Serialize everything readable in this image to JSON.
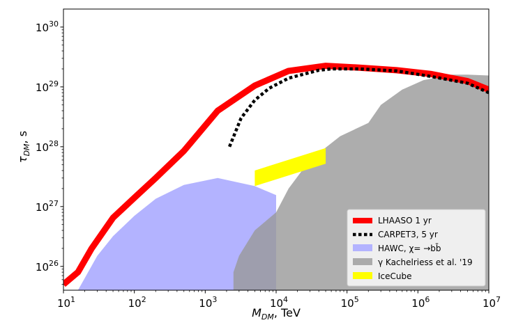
{
  "chart_data": {
    "type": "line",
    "xlabel": "M_DM, TeV",
    "xlabel_main": "M",
    "xlabel_sub": "DM",
    "xlabel_unit": ", TeV",
    "ylabel": "τ_DM, s",
    "ylabel_main": "τ",
    "ylabel_sub": "DM",
    "ylabel_unit": ", s",
    "xscale": "log",
    "yscale": "log",
    "xlim": [
      10,
      10000000
    ],
    "ylim": [
      4e+25,
      2e+30
    ],
    "grid": false,
    "legend_position": "lower-right",
    "x_ticks": [
      {
        "base": "10",
        "exp": "1",
        "value": 10
      },
      {
        "base": "10",
        "exp": "2",
        "value": 100
      },
      {
        "base": "10",
        "exp": "3",
        "value": 1000
      },
      {
        "base": "10",
        "exp": "4",
        "value": 10000
      },
      {
        "base": "10",
        "exp": "5",
        "value": 100000
      },
      {
        "base": "10",
        "exp": "6",
        "value": 1000000
      },
      {
        "base": "10",
        "exp": "7",
        "value": 10000000
      }
    ],
    "y_ticks": [
      {
        "base": "10",
        "exp": "26",
        "value": 1e+26
      },
      {
        "base": "10",
        "exp": "27",
        "value": 1e+27
      },
      {
        "base": "10",
        "exp": "28",
        "value": 1e+28
      },
      {
        "base": "10",
        "exp": "29",
        "value": 1e+29
      },
      {
        "base": "10",
        "exp": "30",
        "value": 1e+30
      }
    ],
    "series": [
      {
        "name": "LHAASO 1 yr",
        "kind": "line",
        "color": "#ff0000",
        "style": "solid",
        "points": [
          [
            10,
            5e+25
          ],
          [
            16,
            8e+25
          ],
          [
            25,
            2e+26
          ],
          [
            50,
            6.5e+26
          ],
          [
            100,
            1.4e+27
          ],
          [
            200,
            3e+27
          ],
          [
            500,
            8.5e+27
          ],
          [
            1500,
            4e+28
          ],
          [
            5000,
            1.05e+29
          ],
          [
            15000,
            1.85e+29
          ],
          [
            50000,
            2.25e+29
          ],
          [
            150000,
            2.1e+29
          ],
          [
            500000,
            1.9e+29
          ],
          [
            1500000,
            1.65e+29
          ],
          [
            5000000,
            1.25e+29
          ],
          [
            10000000,
            9e+28
          ]
        ]
      },
      {
        "name": "CARPET3, 5 yr",
        "kind": "line",
        "color": "#000000",
        "style": "dotted",
        "points": [
          [
            2200,
            1e+28
          ],
          [
            3200,
            3e+28
          ],
          [
            5000,
            6e+28
          ],
          [
            8000,
            9.5e+28
          ],
          [
            15000,
            1.4e+29
          ],
          [
            40000,
            1.9e+29
          ],
          [
            60000,
            2e+29
          ],
          [
            150000,
            2e+29
          ],
          [
            500000,
            1.85e+29
          ],
          [
            1500000,
            1.5e+29
          ],
          [
            5000000,
            1.15e+29
          ],
          [
            10000000,
            8e+28
          ]
        ]
      },
      {
        "name": "HAWC, χ= →bb̄",
        "kind": "region",
        "color": "#9999ff",
        "opacity": 0.75,
        "points": [
          [
            16,
            4e+25
          ],
          [
            30,
            1.5e+26
          ],
          [
            50,
            3.2e+26
          ],
          [
            100,
            7e+26
          ],
          [
            200,
            1.35e+27
          ],
          [
            500,
            2.3e+27
          ],
          [
            1500,
            3e+27
          ],
          [
            5000,
            2.2e+27
          ],
          [
            10000,
            1.55e+27
          ],
          [
            10000,
            4e+25
          ]
        ]
      },
      {
        "name": "γ Kachelriess et al. '19",
        "kind": "region",
        "color": "#999999",
        "opacity": 0.8,
        "points": [
          [
            2500,
            4e+25
          ],
          [
            2500,
            8e+25
          ],
          [
            3000,
            1.5e+26
          ],
          [
            5000,
            4e+26
          ],
          [
            10000,
            8e+26
          ],
          [
            15000,
            2e+27
          ],
          [
            30000,
            6e+27
          ],
          [
            80000,
            1.5e+28
          ],
          [
            200000,
            2.5e+28
          ],
          [
            300000,
            5e+28
          ],
          [
            600000,
            9e+28
          ],
          [
            1200000,
            1.3e+29
          ],
          [
            3000000,
            1.6e+29
          ],
          [
            5000000,
            1.6e+29
          ],
          [
            10000000,
            1.55e+29
          ],
          [
            10000000,
            4e+25
          ]
        ]
      },
      {
        "name": "IceCube",
        "kind": "region",
        "color": "#ffff00",
        "opacity": 1,
        "points": [
          [
            5000,
            2.2e+27
          ],
          [
            50000,
            5.2e+27
          ],
          [
            50000,
            9.5e+27
          ],
          [
            5000,
            4e+27
          ]
        ]
      }
    ]
  },
  "legend": {
    "entries": [
      {
        "label": "LHAASO 1 yr",
        "color": "#ff0000",
        "kind": "thick-line"
      },
      {
        "label": "CARPET3, 5 yr",
        "color": "#000000",
        "kind": "dotted-line"
      },
      {
        "label": "HAWC, χ= →bb̄",
        "color": "#b3b3ff",
        "kind": "patch"
      },
      {
        "label": "γ Kachelriess et al. '19",
        "color": "#ababab",
        "kind": "patch"
      },
      {
        "label": "IceCube",
        "color": "#ffff00",
        "kind": "patch"
      }
    ]
  }
}
